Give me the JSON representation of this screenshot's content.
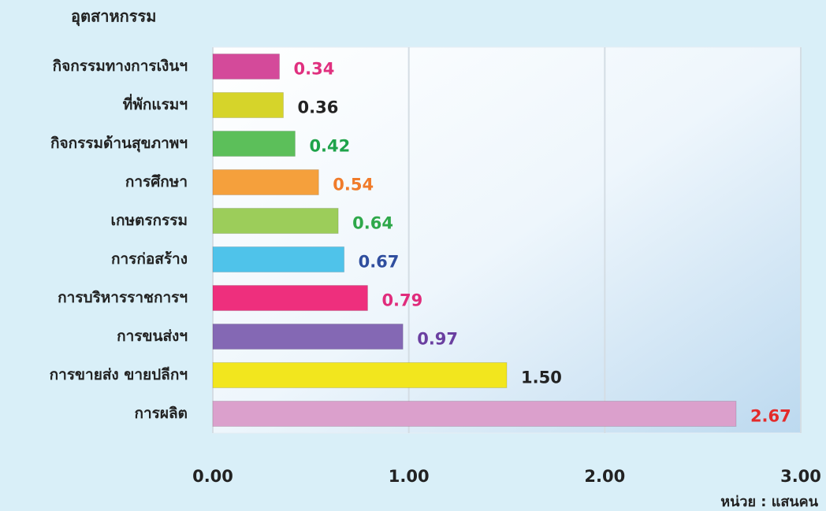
{
  "chart_data": {
    "type": "barh",
    "y_axis_title": "อุตสาหกรรม",
    "unit_note": "หน่วย : แสนคน",
    "categories": [
      "กิจกรรมทางการเงินฯ",
      "ที่พักแรมฯ",
      "กิจกรรมด้านสุขภาพฯ",
      "การศึกษา",
      "เกษตรกรรม",
      "การก่อสร้าง",
      "การบริหารราชการฯ",
      "การขนส่งฯ",
      "การขายส่ง ขายปลีกฯ",
      "การผลิต"
    ],
    "values": [
      0.34,
      0.36,
      0.42,
      0.54,
      0.64,
      0.67,
      0.79,
      0.97,
      1.5,
      2.67
    ],
    "value_labels": [
      "0.34",
      "0.36",
      "0.42",
      "0.54",
      "0.64",
      "0.67",
      "0.79",
      "0.97",
      "1.50",
      "2.67"
    ],
    "colors": [
      "#d44a9a",
      "#d6d42a",
      "#5cbf5a",
      "#f5a03c",
      "#9ccd5a",
      "#4fc3ea",
      "#ee2f7d",
      "#8468b4",
      "#f2e61e",
      "#dba0cc"
    ],
    "label_colors": [
      "#e0307f",
      "#222222",
      "#1ea34a",
      "#f07b2a",
      "#2ea84a",
      "#2f4e9e",
      "#e02c7c",
      "#6a3fa0",
      "#222222",
      "#e32a2a"
    ],
    "xlim": [
      0,
      3
    ],
    "xticks": [
      {
        "value": 0,
        "label": "0.00"
      },
      {
        "value": 1,
        "label": "1.00"
      },
      {
        "value": 2,
        "label": "2.00"
      },
      {
        "value": 3,
        "label": "3.00"
      }
    ],
    "grid": true
  }
}
